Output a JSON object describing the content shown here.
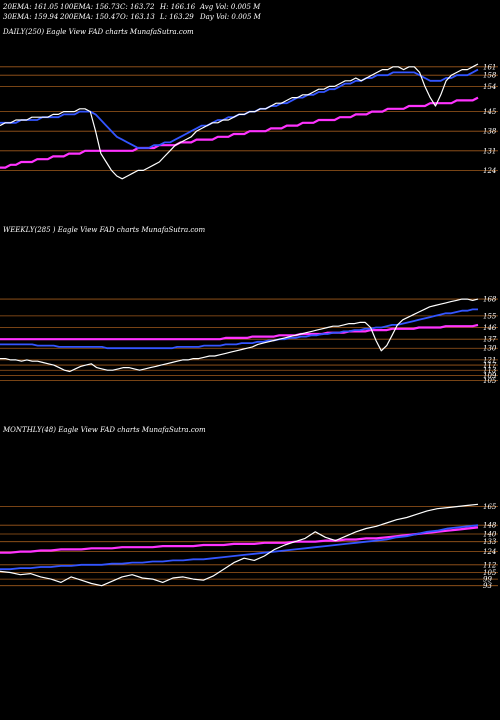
{
  "header": {
    "row1": [
      "20EMA: 161.05",
      "100EMA: 156.73",
      "C: 163.72",
      "H: 166.16",
      "Avg Vol: 0.005 M"
    ],
    "row2": [
      "30EMA: 159.94",
      "200EMA: 150.47",
      "O: 163.13",
      "L: 163.29",
      "Day Vol: 0.005 M"
    ]
  },
  "chart_data": [
    {
      "type": "line",
      "title": "DAILY(250) Eagle  View  FAD charts MunafaSutra.com",
      "yticks": [
        161,
        158,
        154,
        145,
        138,
        131,
        124
      ],
      "ylim": [
        117,
        167
      ],
      "price": [
        140,
        141,
        141,
        142,
        142,
        142,
        143,
        143,
        143,
        143,
        144,
        144,
        145,
        145,
        145,
        146,
        146,
        145,
        138,
        130,
        127,
        124,
        122,
        121,
        122,
        123,
        124,
        124,
        125,
        126,
        127,
        129,
        131,
        133,
        134,
        135,
        136,
        138,
        139,
        140,
        141,
        141,
        142,
        142,
        143,
        144,
        144,
        145,
        145,
        146,
        146,
        147,
        148,
        148,
        149,
        150,
        150,
        151,
        151,
        152,
        153,
        153,
        154,
        154,
        155,
        156,
        156,
        157,
        156,
        157,
        158,
        159,
        160,
        160,
        161,
        161,
        160,
        161,
        161,
        159,
        154,
        150,
        147,
        151,
        156,
        158,
        159,
        160,
        160,
        161,
        162
      ],
      "ema_blue": [
        141,
        141,
        141,
        141,
        142,
        142,
        142,
        142,
        143,
        143,
        143,
        143,
        144,
        144,
        144,
        145,
        145,
        145,
        144,
        142,
        140,
        138,
        136,
        135,
        134,
        133,
        132,
        132,
        132,
        133,
        133,
        134,
        134,
        135,
        136,
        137,
        138,
        139,
        140,
        140,
        141,
        142,
        142,
        143,
        143,
        144,
        144,
        145,
        145,
        146,
        146,
        147,
        147,
        148,
        148,
        149,
        150,
        150,
        151,
        151,
        152,
        152,
        153,
        153,
        154,
        155,
        155,
        156,
        156,
        157,
        157,
        158,
        158,
        158,
        159,
        159,
        159,
        159,
        159,
        158,
        157,
        156,
        156,
        156,
        157,
        157,
        158,
        158,
        158,
        159,
        160
      ],
      "ema_magenta": [
        125,
        125,
        126,
        126,
        127,
        127,
        127,
        128,
        128,
        128,
        129,
        129,
        129,
        130,
        130,
        130,
        131,
        131,
        131,
        131,
        131,
        131,
        131,
        131,
        131,
        131,
        132,
        132,
        132,
        132,
        133,
        133,
        133,
        133,
        134,
        134,
        134,
        135,
        135,
        135,
        135,
        136,
        136,
        136,
        137,
        137,
        137,
        138,
        138,
        138,
        138,
        139,
        139,
        139,
        140,
        140,
        140,
        141,
        141,
        141,
        142,
        142,
        142,
        142,
        143,
        143,
        143,
        144,
        144,
        144,
        145,
        145,
        145,
        146,
        146,
        146,
        146,
        147,
        147,
        147,
        147,
        148,
        148,
        148,
        148,
        148,
        149,
        149,
        149,
        149,
        150
      ]
    },
    {
      "type": "line",
      "title": "WEEKLY(285              ) Eagle  View  FAD charts MunafaSutra.com",
      "yticks": [
        168,
        155,
        146,
        137,
        130,
        121,
        117,
        113,
        109,
        105
      ],
      "ylim": [
        90,
        175
      ],
      "price": [
        122,
        122,
        121,
        121,
        120,
        121,
        120,
        120,
        119,
        118,
        117,
        115,
        113,
        112,
        114,
        116,
        117,
        118,
        115,
        114,
        113,
        113,
        114,
        115,
        115,
        114,
        113,
        114,
        115,
        116,
        117,
        118,
        119,
        120,
        121,
        121,
        122,
        122,
        123,
        124,
        124,
        125,
        126,
        127,
        128,
        129,
        130,
        131,
        133,
        134,
        135,
        136,
        137,
        138,
        139,
        140,
        141,
        142,
        143,
        144,
        145,
        146,
        147,
        147,
        148,
        149,
        149,
        150,
        150,
        146,
        136,
        128,
        132,
        140,
        148,
        152,
        154,
        156,
        158,
        160,
        162,
        163,
        164,
        165,
        166,
        167,
        168,
        168,
        167,
        168
      ],
      "ema_blue": [
        133,
        133,
        133,
        133,
        133,
        133,
        133,
        132,
        132,
        132,
        132,
        131,
        131,
        131,
        131,
        131,
        131,
        131,
        131,
        131,
        130,
        130,
        130,
        130,
        130,
        130,
        130,
        130,
        130,
        130,
        130,
        130,
        130,
        131,
        131,
        131,
        131,
        131,
        132,
        132,
        132,
        132,
        133,
        133,
        133,
        134,
        134,
        134,
        135,
        135,
        136,
        136,
        137,
        137,
        138,
        138,
        139,
        139,
        140,
        140,
        141,
        141,
        142,
        142,
        143,
        143,
        144,
        144,
        145,
        145,
        146,
        146,
        147,
        148,
        148,
        149,
        150,
        151,
        152,
        153,
        154,
        155,
        156,
        157,
        157,
        158,
        159,
        159,
        160,
        160
      ],
      "ema_magenta": [
        137,
        137,
        137,
        137,
        137,
        137,
        137,
        137,
        137,
        137,
        137,
        137,
        137,
        137,
        137,
        137,
        137,
        137,
        137,
        137,
        137,
        137,
        137,
        137,
        137,
        137,
        137,
        137,
        137,
        137,
        137,
        137,
        137,
        137,
        137,
        137,
        137,
        137,
        137,
        137,
        137,
        137,
        138,
        138,
        138,
        138,
        138,
        139,
        139,
        139,
        139,
        139,
        140,
        140,
        140,
        140,
        141,
        141,
        141,
        141,
        141,
        142,
        142,
        142,
        142,
        143,
        143,
        143,
        143,
        144,
        144,
        144,
        144,
        145,
        145,
        145,
        145,
        145,
        146,
        146,
        146,
        146,
        146,
        147,
        147,
        147,
        147,
        147,
        147,
        148
      ]
    },
    {
      "type": "line",
      "title": "MONTHLY(48) Eagle  View  FAD charts MunafaSutra.com",
      "yticks": [
        165,
        148,
        140,
        133,
        124,
        112,
        105,
        99,
        93
      ],
      "ylim": [
        80,
        180
      ],
      "price": [
        106,
        105,
        103,
        104,
        101,
        99,
        96,
        101,
        98,
        95,
        93,
        97,
        101,
        103,
        100,
        99,
        96,
        100,
        101,
        99,
        98,
        102,
        108,
        114,
        118,
        116,
        120,
        126,
        130,
        133,
        136,
        142,
        137,
        134,
        138,
        142,
        145,
        147,
        150,
        153,
        155,
        158,
        161,
        163,
        164,
        165,
        166,
        167
      ],
      "ema_blue": [
        108,
        108,
        109,
        109,
        110,
        110,
        111,
        111,
        112,
        112,
        112,
        113,
        113,
        114,
        114,
        115,
        115,
        116,
        116,
        117,
        117,
        118,
        119,
        120,
        121,
        122,
        123,
        124,
        125,
        126,
        127,
        128,
        129,
        130,
        131,
        132,
        133,
        134,
        135,
        137,
        138,
        140,
        142,
        143,
        145,
        146,
        147,
        148
      ],
      "ema_magenta": [
        123,
        123,
        124,
        124,
        125,
        125,
        126,
        126,
        126,
        127,
        127,
        127,
        128,
        128,
        128,
        128,
        129,
        129,
        129,
        129,
        130,
        130,
        130,
        131,
        131,
        131,
        132,
        132,
        132,
        133,
        133,
        133,
        134,
        134,
        135,
        135,
        136,
        136,
        137,
        138,
        139,
        140,
        141,
        142,
        143,
        144,
        145,
        146
      ]
    }
  ]
}
